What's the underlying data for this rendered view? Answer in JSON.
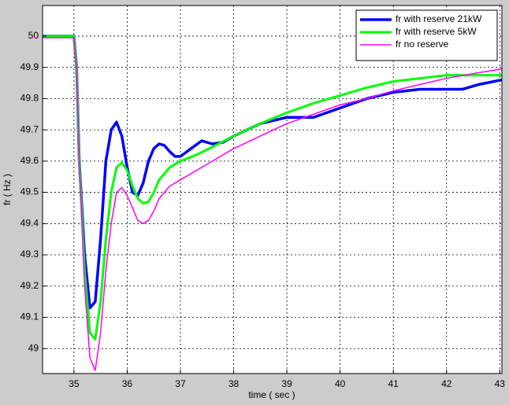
{
  "chart_data": {
    "type": "line",
    "xlabel": "time ( sec )",
    "ylabel": "fr ( Hz )",
    "xlim": [
      34.41,
      43.04
    ],
    "ylim": [
      48.92,
      50.098
    ],
    "xticks": [
      35,
      36,
      37,
      38,
      39,
      40,
      41,
      42,
      43
    ],
    "yticks": [
      49,
      49.1,
      49.2,
      49.3,
      49.4,
      49.5,
      49.6,
      49.7,
      49.8,
      49.9,
      50
    ],
    "grid": true,
    "legend": "upper right",
    "series": [
      {
        "name": "fr with reserve 21kW",
        "color": "#0000ff",
        "width": 3.5,
        "x": [
          34.41,
          35.0,
          35.05,
          35.1,
          35.2,
          35.3,
          35.4,
          35.5,
          35.6,
          35.7,
          35.8,
          35.9,
          36.0,
          36.1,
          36.2,
          36.3,
          36.4,
          36.5,
          36.6,
          36.7,
          36.8,
          36.9,
          37.0,
          37.2,
          37.4,
          37.6,
          37.8,
          38.0,
          38.5,
          39.0,
          39.5,
          40.0,
          40.5,
          41.0,
          41.5,
          42.0,
          42.3,
          42.6,
          43.04
        ],
        "values": [
          50,
          50,
          49.9,
          49.6,
          49.3,
          49.13,
          49.15,
          49.35,
          49.6,
          49.7,
          49.725,
          49.68,
          49.58,
          49.5,
          49.49,
          49.53,
          49.6,
          49.64,
          49.655,
          49.65,
          49.63,
          49.615,
          49.615,
          49.64,
          49.665,
          49.655,
          49.66,
          49.68,
          49.72,
          49.74,
          49.74,
          49.77,
          49.8,
          49.82,
          49.83,
          49.83,
          49.83,
          49.845,
          49.86
        ]
      },
      {
        "name": "fr with reserve 5kW",
        "color": "#00ff00",
        "width": 3,
        "x": [
          34.41,
          35.0,
          35.05,
          35.1,
          35.2,
          35.3,
          35.4,
          35.5,
          35.6,
          35.7,
          35.8,
          35.9,
          36.0,
          36.1,
          36.2,
          36.3,
          36.4,
          36.5,
          36.6,
          36.8,
          37.0,
          37.3,
          37.6,
          38.0,
          38.5,
          39.0,
          39.5,
          40.0,
          40.5,
          41.0,
          41.5,
          42.0,
          43.04
        ],
        "values": [
          50,
          50,
          49.9,
          49.6,
          49.25,
          49.05,
          49.03,
          49.15,
          49.35,
          49.5,
          49.58,
          49.595,
          49.57,
          49.52,
          49.48,
          49.465,
          49.47,
          49.5,
          49.54,
          49.58,
          49.6,
          49.62,
          49.645,
          49.68,
          49.72,
          49.755,
          49.785,
          49.81,
          49.835,
          49.855,
          49.865,
          49.875,
          49.875
        ]
      },
      {
        "name": "fr no reserve",
        "color": "#ff00ff",
        "width": 1.5,
        "x": [
          34.41,
          35.0,
          35.05,
          35.1,
          35.2,
          35.3,
          35.4,
          35.5,
          35.6,
          35.7,
          35.8,
          35.9,
          36.0,
          36.1,
          36.2,
          36.3,
          36.4,
          36.5,
          36.6,
          36.8,
          37.0,
          37.3,
          37.6,
          38.0,
          38.5,
          39.0,
          39.5,
          40.0,
          40.5,
          41.0,
          41.5,
          42.0,
          42.5,
          43.04
        ],
        "values": [
          49.995,
          49.995,
          49.9,
          49.6,
          49.2,
          48.97,
          48.93,
          49.05,
          49.25,
          49.4,
          49.5,
          49.515,
          49.49,
          49.45,
          49.41,
          49.4,
          49.41,
          49.44,
          49.48,
          49.52,
          49.54,
          49.57,
          49.6,
          49.64,
          49.68,
          49.72,
          49.75,
          49.78,
          49.8,
          49.825,
          49.845,
          49.865,
          49.88,
          49.895
        ]
      }
    ]
  }
}
